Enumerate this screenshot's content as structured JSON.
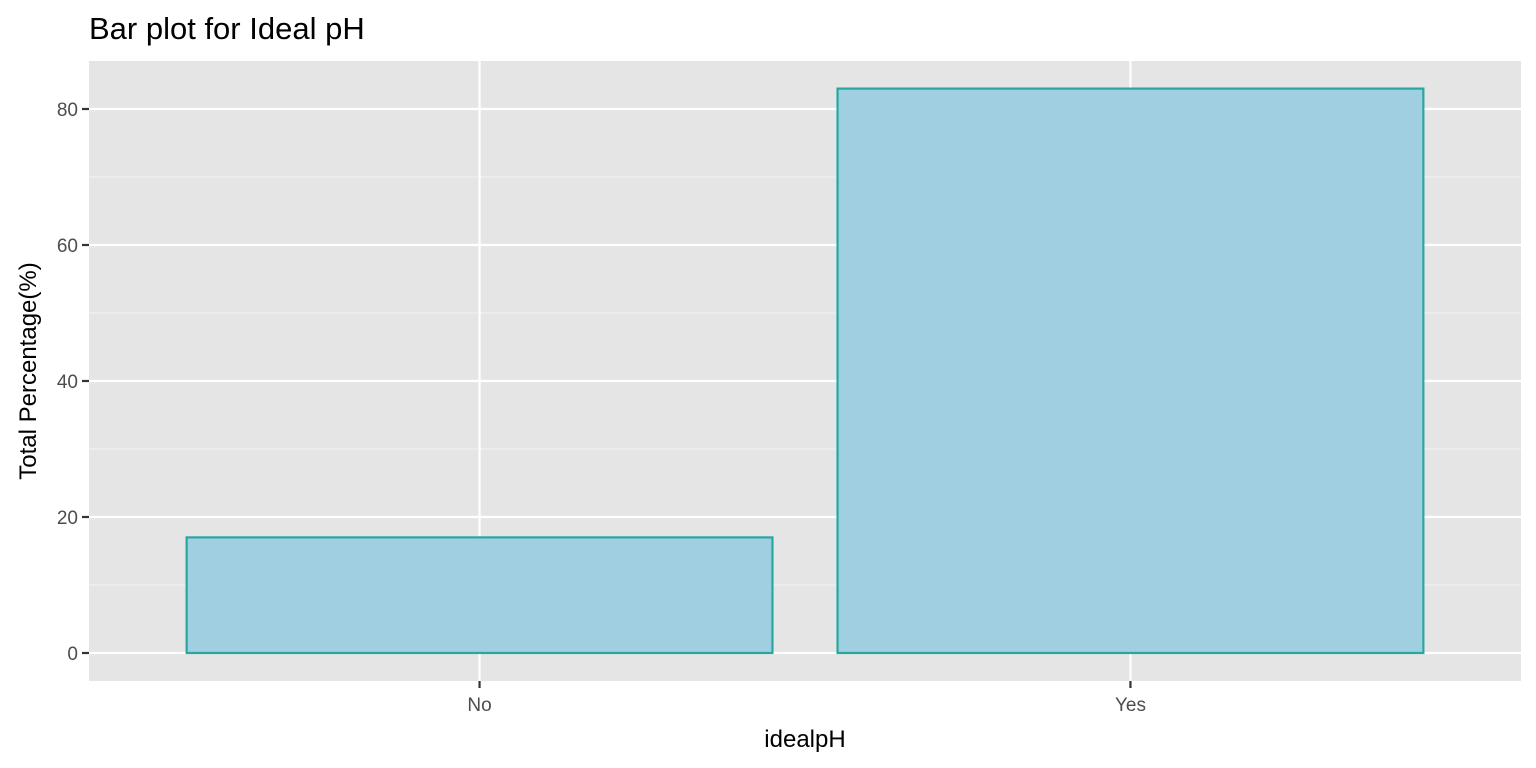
{
  "chart_data": {
    "type": "bar",
    "title": "Bar plot for Ideal pH",
    "xlabel": "idealpH",
    "ylabel": "Total Percentage(%)",
    "categories": [
      "No",
      "Yes"
    ],
    "values": [
      17,
      83
    ],
    "ylim": [
      0,
      87
    ],
    "yticks": [
      0,
      20,
      40,
      60,
      80
    ],
    "grid": true,
    "legend": "none",
    "colors": {
      "panel_background": "#e5e5e5",
      "grid_major": "#ffffff",
      "grid_minor": "#f2f2f2",
      "bar_fill": "#9fcfe0",
      "bar_outline": "#28a79f",
      "tick_mark": "#333333",
      "tick_label": "#4d4d4d",
      "text": "#000000"
    }
  }
}
